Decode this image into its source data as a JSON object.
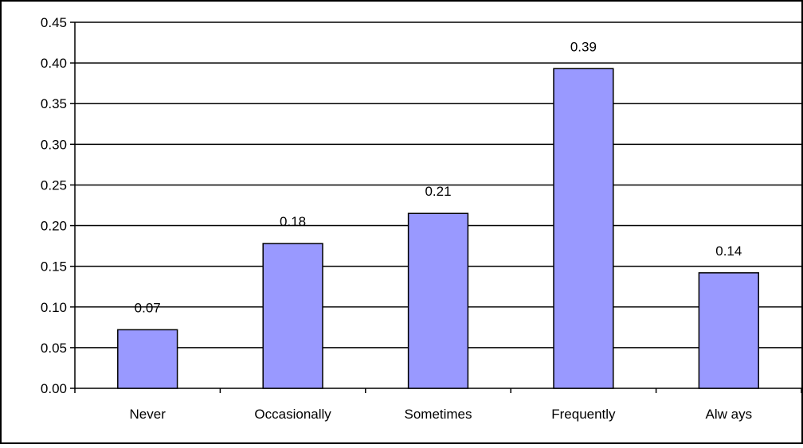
{
  "chart_data": {
    "type": "bar",
    "title": "",
    "xlabel": "",
    "ylabel": "",
    "categories": [
      "Never",
      "Occasionally",
      "Sometimes",
      "Frequently",
      "Alw ays"
    ],
    "values": [
      0.07,
      0.18,
      0.21,
      0.39,
      0.14
    ],
    "bar_values": [
      0.072,
      0.178,
      0.215,
      0.393,
      0.142
    ],
    "ylim": [
      0,
      0.45
    ],
    "yticks": [
      "0.00",
      "0.05",
      "0.10",
      "0.15",
      "0.20",
      "0.25",
      "0.30",
      "0.35",
      "0.40",
      "0.45"
    ],
    "grid": true,
    "legend": "none",
    "colors": {
      "bar_fill": "#9999ff",
      "bar_stroke": "#000000",
      "gridline": "#000000",
      "frame": "#000000"
    }
  }
}
